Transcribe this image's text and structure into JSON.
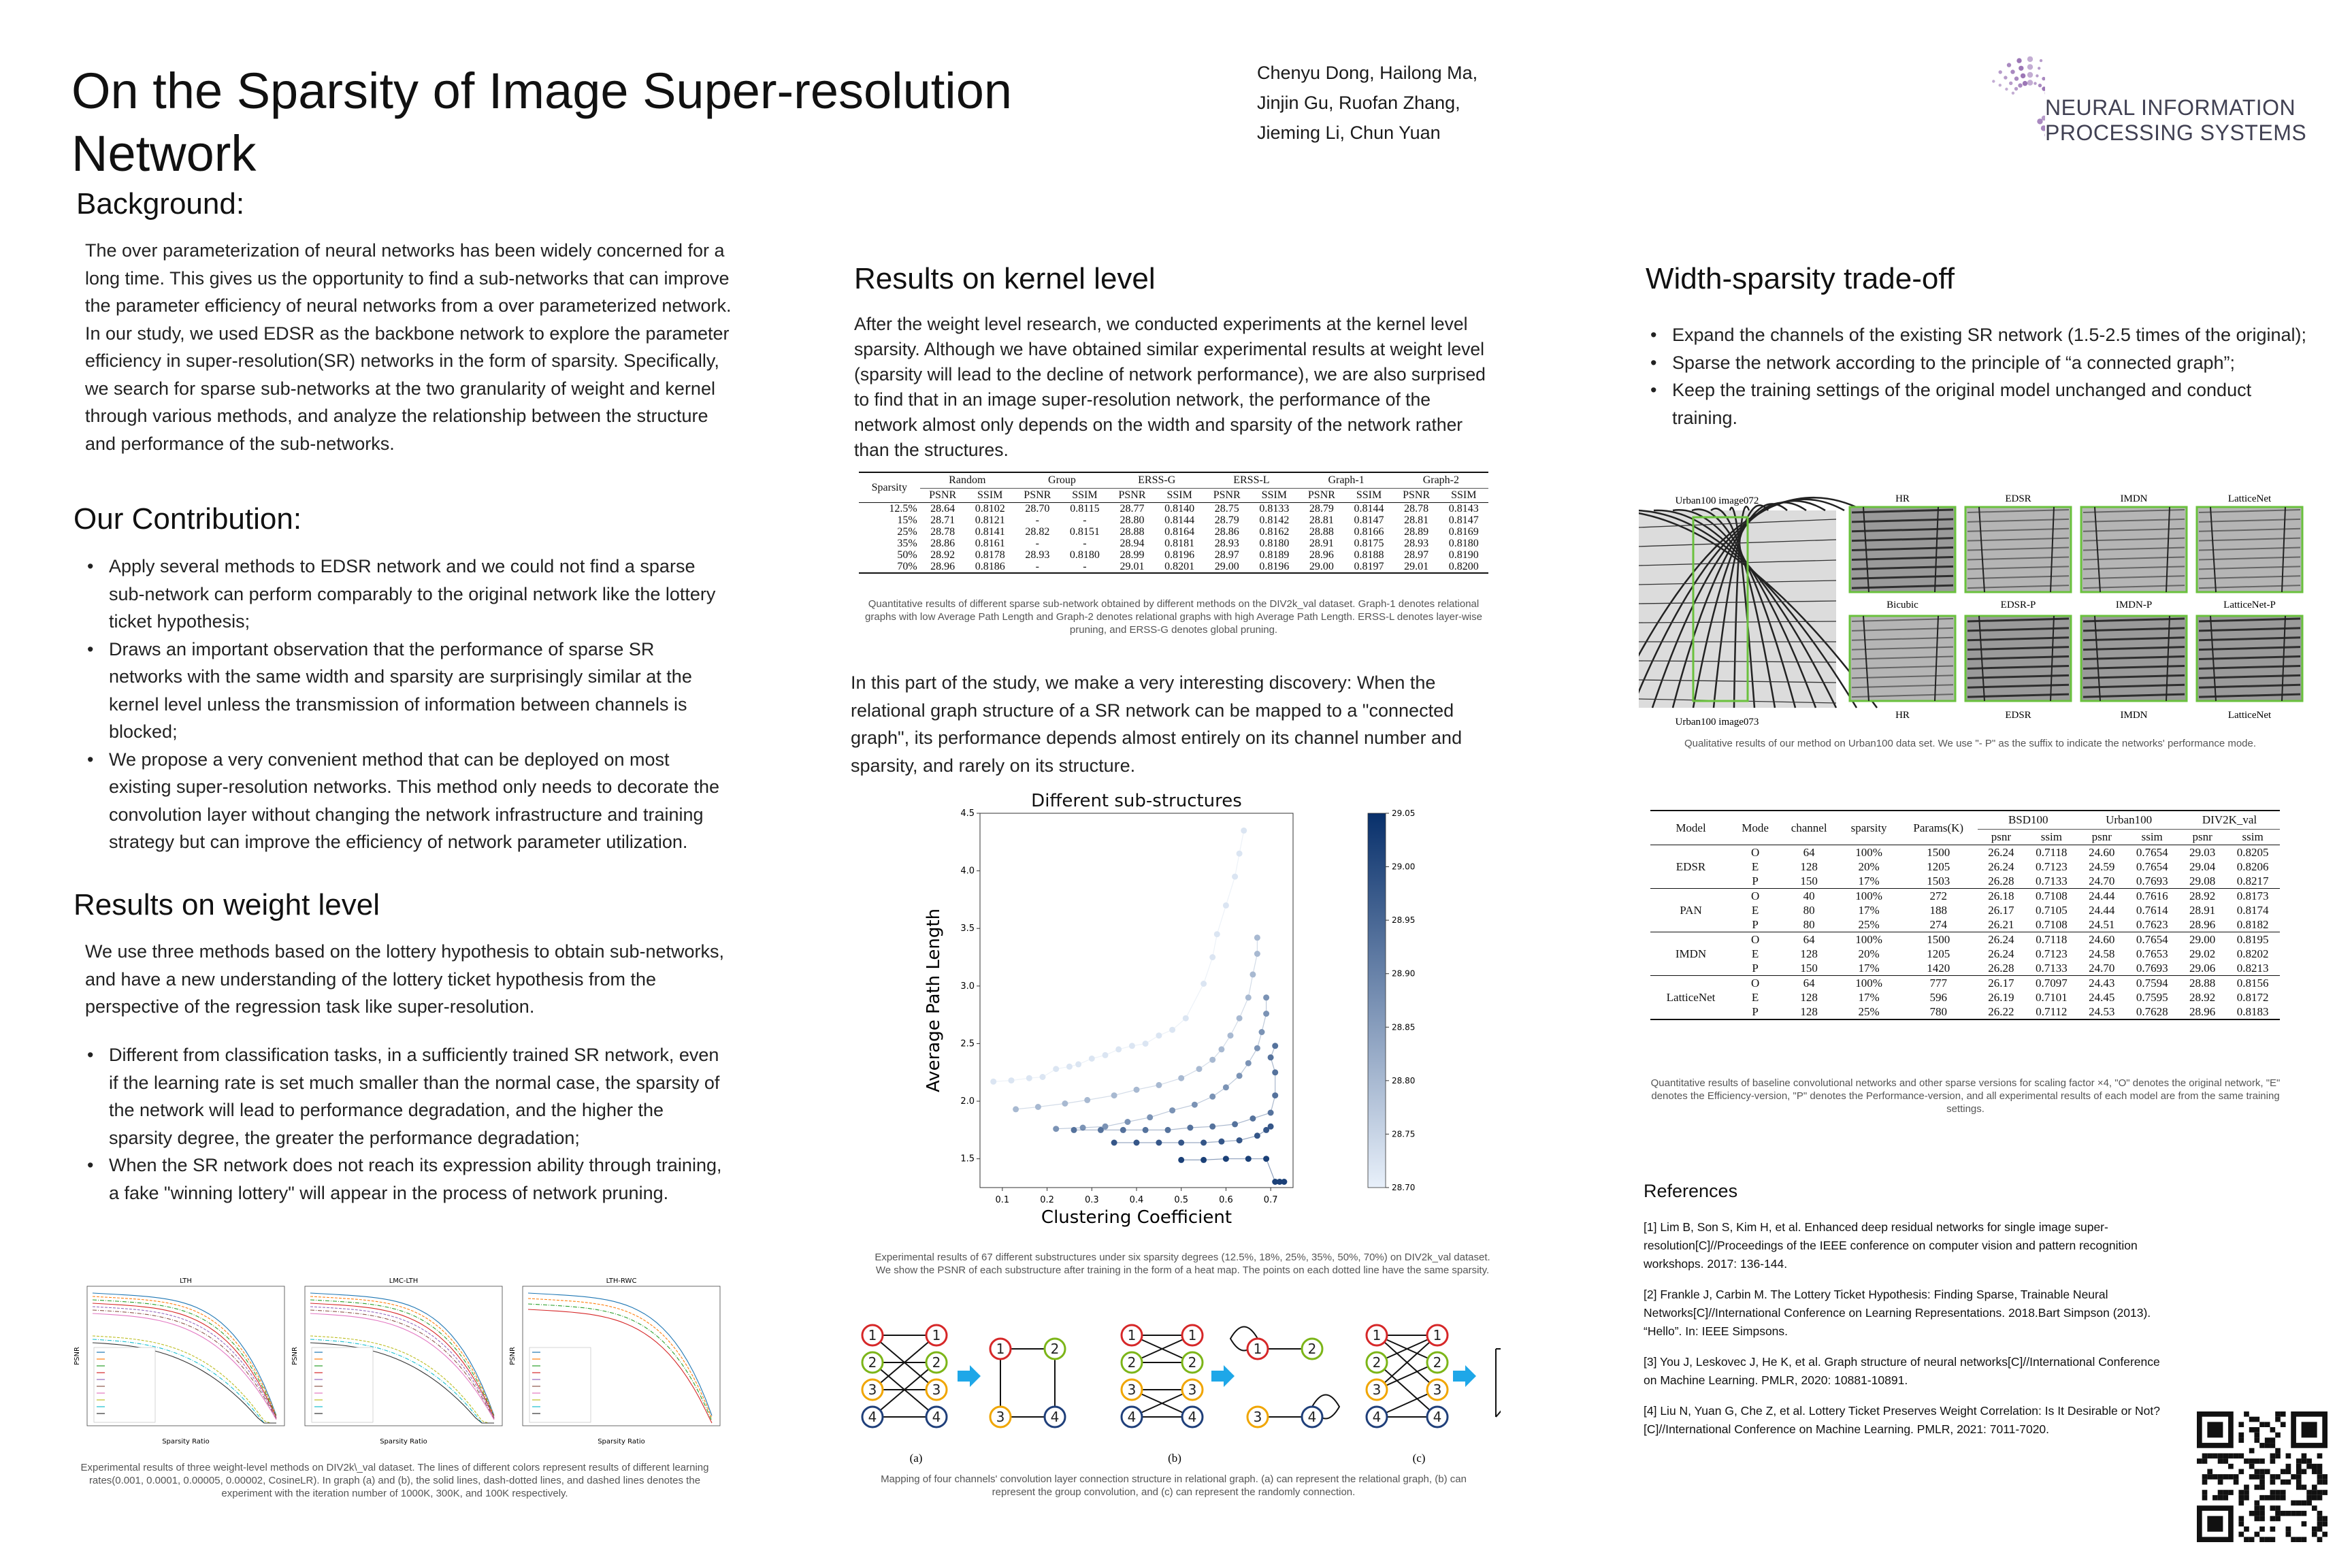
{
  "header": {
    "title": "On the Sparsity of Image Super-resolution Network",
    "authors": [
      "Chenyu Dong, Hailong Ma,",
      "Jinjin Gu, Ruofan Zhang,",
      "Jieming Li, Chun Yuan"
    ],
    "logo_line1": "NEURAL INFORMATION",
    "logo_line2": "PROCESSING SYSTEMS"
  },
  "background": {
    "heading": "Background:",
    "text": "The over parameterization of neural networks has been widely concerned for a long time. This gives us the opportunity to find a sub-networks that can improve the parameter efficiency of neural networks from a over parameterized network. In our study, we used EDSR as the backbone network to explore the parameter efficiency in super-resolution(SR) networks in the form of sparsity. Specifically, we search for sparse sub-networks at the two granularity of weight and kernel through various methods, and analyze the relationship between the structure and performance of the sub-networks."
  },
  "contribution": {
    "heading": "Our Contribution:",
    "items": [
      "Apply several methods to EDSR network and we could not find a sparse sub-network can perform comparably to the original network like the lottery ticket hypothesis;",
      "Draws an important observation that the performance of sparse SR networks with the same width and sparsity are surprisingly similar at the kernel level unless the transmission of information between channels is blocked;",
      "We propose a very convenient method that can be deployed on most existing super-resolution networks. This method only needs to decorate the convolution layer without changing the network infrastructure and training strategy but can improve the efficiency of network parameter utilization."
    ]
  },
  "weight": {
    "heading": "Results on weight level",
    "intro": "We use three methods based on the lottery hypothesis to obtain sub-networks, and have a new understanding of the lottery ticket hypothesis from the perspective of the regression task like super-resolution.",
    "items": [
      "Different from classification tasks, in a sufficiently trained SR network, even if the learning rate is set much smaller than the normal case, the sparsity of the network will lead to performance degradation, and the higher the sparsity degree, the greater the performance degradation;",
      "When the SR network does not reach its expression ability through training, a fake \"winning lottery\" will appear in the process of network pruning."
    ],
    "plots": [
      {
        "title": "LTH",
        "xlabel": "Sparsity Ratio",
        "ylabel": "PSNR"
      },
      {
        "title": "LMC-LTH",
        "xlabel": "Sparsity Ratio",
        "ylabel": "PSNR"
      },
      {
        "title": "LTH-RWC",
        "xlabel": "Sparsity Ratio",
        "ylabel": "PSNR"
      }
    ],
    "caption": "Experimental results of three weight-level methods on DIV2k\\_val dataset. The lines of different colors represent results of different learning rates(0.001, 0.0001, 0.00005, 0.00002, CosineLR). In graph (a) and (b), the solid lines, dash-dotted lines, and dashed lines denotes the experiment with the iteration number of 1000K, 300K, and 100K respectively."
  },
  "kernel": {
    "heading": "Results on kernel level",
    "intro": "After the weight level research, we conducted experiments at the kernel level sparsity.  Although we have obtained similar experimental results at weight level (sparsity will lead to the decline of network performance), we are also surprised to find that in an image super-resolution network, the performance of the network almost only depends on the width and sparsity of the network rather than the structures.",
    "table": {
      "groups": [
        "Random",
        "Group",
        "ERSS-G",
        "ERSS-L",
        "Graph-1",
        "Graph-2"
      ],
      "sub": [
        "PSNR",
        "SSIM"
      ],
      "first_col": "Sparsity",
      "rows": [
        [
          "12.5%",
          "28.64",
          "0.8102",
          "28.70",
          "0.8115",
          "28.77",
          "0.8140",
          "28.75",
          "0.8133",
          "28.79",
          "0.8144",
          "28.78",
          "0.8143"
        ],
        [
          "15%",
          "28.71",
          "0.8121",
          "-",
          "-",
          "28.80",
          "0.8144",
          "28.79",
          "0.8142",
          "28.81",
          "0.8147",
          "28.81",
          "0.8147"
        ],
        [
          "25%",
          "28.78",
          "0.8141",
          "28.82",
          "0.8151",
          "28.88",
          "0.8164",
          "28.86",
          "0.8162",
          "28.88",
          "0.8166",
          "28.89",
          "0.8169"
        ],
        [
          "35%",
          "28.86",
          "0.8161",
          "-",
          "-",
          "28.94",
          "0.8181",
          "28.93",
          "0.8180",
          "28.91",
          "0.8175",
          "28.93",
          "0.8180"
        ],
        [
          "50%",
          "28.92",
          "0.8178",
          "28.93",
          "0.8180",
          "28.99",
          "0.8196",
          "28.97",
          "0.8189",
          "28.96",
          "0.8188",
          "28.97",
          "0.8190"
        ],
        [
          "70%",
          "28.96",
          "0.8186",
          "-",
          "-",
          "29.01",
          "0.8201",
          "29.00",
          "0.8196",
          "29.00",
          "0.8197",
          "29.01",
          "0.8200"
        ]
      ]
    },
    "table_caption": "Quantitative results of different sparse sub-network obtained by different methods on the DIV2k_val dataset. Graph-1 denotes relational graphs with low Average Path Length and Graph-2 denotes relational graphs with high Average Path Length. ERSS-L denotes layer-wise pruning, and ERSS-G denotes global pruning.",
    "discovery": "In this part of the study, we make a very interesting discovery: When the relational graph structure of a SR network can be mapped to a \"connected graph\", its performance depends almost entirely on its channel number and sparsity, and rarely on its structure.",
    "scatter_caption": "Experimental results of 67 different substructures under six sparsity degrees (12.5%, 18%, 25%, 35%, 50%, 70%) on DIV2k_val dataset. We show the PSNR of each substructure after training in the form of a heat map. The points on each dotted line have the same sparsity.",
    "graph_labels": [
      "(a)",
      "(b)",
      "(c)"
    ],
    "graph_caption": "Mapping of four channels' convolution layer connection structure in relational graph. (a) can represent the relational graph, (b) can represent the group convolution, and (c) can represent the randomly connection."
  },
  "chart_data": {
    "type": "scatter",
    "title": "Different sub-structures",
    "xlabel": "Clustering Coefficient",
    "ylabel": "Average Path Length",
    "xlim": [
      0.05,
      0.75
    ],
    "ylim": [
      1.25,
      4.5
    ],
    "xticks": [
      "0.1",
      "0.2",
      "0.3",
      "0.4",
      "0.5",
      "0.6",
      "0.7"
    ],
    "yticks": [
      "1.5",
      "2.0",
      "2.5",
      "3.0",
      "3.5",
      "4.0",
      "4.5"
    ],
    "colorbar": {
      "min": 28.7,
      "max": 29.05,
      "ticks": [
        "28.70",
        "28.75",
        "28.80",
        "28.85",
        "28.90",
        "28.95",
        "29.00",
        "29.05"
      ]
    },
    "series": [
      {
        "psnr": 28.72,
        "points": [
          [
            0.08,
            2.17
          ],
          [
            0.12,
            2.18
          ],
          [
            0.16,
            2.2
          ],
          [
            0.19,
            2.21
          ],
          [
            0.22,
            2.28
          ],
          [
            0.25,
            2.3
          ],
          [
            0.27,
            2.32
          ],
          [
            0.3,
            2.37
          ],
          [
            0.33,
            2.4
          ],
          [
            0.36,
            2.45
          ],
          [
            0.39,
            2.48
          ],
          [
            0.42,
            2.5
          ],
          [
            0.45,
            2.57
          ],
          [
            0.48,
            2.62
          ],
          [
            0.51,
            2.72
          ],
          [
            0.55,
            3.02
          ],
          [
            0.57,
            3.25
          ],
          [
            0.58,
            3.45
          ],
          [
            0.6,
            3.7
          ],
          [
            0.62,
            3.95
          ],
          [
            0.63,
            4.15
          ],
          [
            0.64,
            4.35
          ]
        ]
      },
      {
        "psnr": 28.8,
        "points": [
          [
            0.13,
            1.93
          ],
          [
            0.18,
            1.95
          ],
          [
            0.24,
            1.98
          ],
          [
            0.29,
            2.01
          ],
          [
            0.35,
            2.05
          ],
          [
            0.4,
            2.1
          ],
          [
            0.45,
            2.14
          ],
          [
            0.5,
            2.2
          ],
          [
            0.54,
            2.28
          ],
          [
            0.57,
            2.36
          ],
          [
            0.59,
            2.45
          ],
          [
            0.61,
            2.57
          ],
          [
            0.63,
            2.72
          ],
          [
            0.65,
            2.9
          ],
          [
            0.66,
            3.1
          ],
          [
            0.67,
            3.28
          ],
          [
            0.67,
            3.42
          ]
        ]
      },
      {
        "psnr": 28.87,
        "points": [
          [
            0.22,
            1.76
          ],
          [
            0.28,
            1.77
          ],
          [
            0.33,
            1.78
          ],
          [
            0.38,
            1.82
          ],
          [
            0.43,
            1.86
          ],
          [
            0.48,
            1.92
          ],
          [
            0.53,
            1.97
          ],
          [
            0.57,
            2.04
          ],
          [
            0.6,
            2.12
          ],
          [
            0.63,
            2.22
          ],
          [
            0.65,
            2.33
          ],
          [
            0.67,
            2.46
          ],
          [
            0.68,
            2.6
          ],
          [
            0.69,
            2.76
          ],
          [
            0.69,
            2.9
          ]
        ]
      },
      {
        "psnr": 28.93,
        "points": [
          [
            0.26,
            1.75
          ],
          [
            0.32,
            1.75
          ],
          [
            0.37,
            1.75
          ],
          [
            0.42,
            1.75
          ],
          [
            0.47,
            1.75
          ],
          [
            0.52,
            1.77
          ],
          [
            0.57,
            1.78
          ],
          [
            0.62,
            1.8
          ],
          [
            0.66,
            1.85
          ],
          [
            0.7,
            1.9
          ],
          [
            0.71,
            2.05
          ],
          [
            0.71,
            2.25
          ],
          [
            0.7,
            2.38
          ],
          [
            0.71,
            2.48
          ]
        ]
      },
      {
        "psnr": 28.98,
        "points": [
          [
            0.35,
            1.64
          ],
          [
            0.4,
            1.64
          ],
          [
            0.45,
            1.64
          ],
          [
            0.5,
            1.64
          ],
          [
            0.55,
            1.64
          ],
          [
            0.59,
            1.65
          ],
          [
            0.63,
            1.66
          ],
          [
            0.67,
            1.7
          ],
          [
            0.69,
            1.75
          ],
          [
            0.7,
            1.78
          ]
        ]
      },
      {
        "psnr": 29.02,
        "points": [
          [
            0.5,
            1.49
          ],
          [
            0.55,
            1.49
          ],
          [
            0.6,
            1.5
          ],
          [
            0.65,
            1.5
          ],
          [
            0.69,
            1.5
          ],
          [
            0.71,
            1.3
          ],
          [
            0.72,
            1.3
          ],
          [
            0.73,
            1.3
          ]
        ]
      }
    ]
  },
  "width": {
    "heading": "Width-sparsity trade-off",
    "items": [
      "Expand the channels of the existing SR network (1.5-2.5 times of the original);",
      "Sparse the network according to the principle of “a connected graph”;",
      "Keep the training settings of the original model unchanged and conduct training."
    ],
    "img_top": "Urban100 image072",
    "img_bottom": "Urban100 image073",
    "top_labels": [
      "HR",
      "EDSR",
      "IMDN",
      "LatticeNet"
    ],
    "mid_labels": [
      "Bicubic",
      "EDSR-P",
      "IMDN-P",
      "LatticeNet-P"
    ],
    "bot_labels": [
      "HR",
      "EDSR",
      "IMDN",
      "LatticeNet"
    ],
    "img_caption": "Qualitative results of our method on Urban100 data set. We use \"- P\" as the suffix to indicate the networks' performance mode.",
    "table": {
      "head1": [
        "Model",
        "Mode",
        "channel",
        "sparsity",
        "Params(K)",
        "BSD100",
        "Urban100",
        "DIV2K_val"
      ],
      "sub": [
        "psnr",
        "ssim"
      ],
      "models": [
        {
          "name": "EDSR",
          "rows": [
            [
              "O",
              "64",
              "100%",
              "1500",
              "26.24",
              "0.7118",
              "24.60",
              "0.7654",
              "29.03",
              "0.8205"
            ],
            [
              "E",
              "128",
              "20%",
              "1205",
              "26.24",
              "0.7123",
              "24.59",
              "0.7654",
              "29.04",
              "0.8206"
            ],
            [
              "P",
              "150",
              "17%",
              "1503",
              "26.28",
              "0.7133",
              "24.70",
              "0.7693",
              "29.08",
              "0.8217"
            ]
          ]
        },
        {
          "name": "PAN",
          "rows": [
            [
              "O",
              "40",
              "100%",
              "272",
              "26.18",
              "0.7108",
              "24.44",
              "0.7616",
              "28.92",
              "0.8173"
            ],
            [
              "E",
              "80",
              "17%",
              "188",
              "26.17",
              "0.7105",
              "24.44",
              "0.7614",
              "28.91",
              "0.8174"
            ],
            [
              "P",
              "80",
              "25%",
              "274",
              "26.21",
              "0.7108",
              "24.51",
              "0.7623",
              "28.96",
              "0.8182"
            ]
          ]
        },
        {
          "name": "IMDN",
          "rows": [
            [
              "O",
              "64",
              "100%",
              "1500",
              "26.24",
              "0.7118",
              "24.60",
              "0.7654",
              "29.00",
              "0.8195"
            ],
            [
              "E",
              "128",
              "20%",
              "1205",
              "26.24",
              "0.7123",
              "24.58",
              "0.7653",
              "29.02",
              "0.8202"
            ],
            [
              "P",
              "150",
              "17%",
              "1420",
              "26.28",
              "0.7133",
              "24.70",
              "0.7693",
              "29.06",
              "0.8213"
            ]
          ]
        },
        {
          "name": "LatticeNet",
          "rows": [
            [
              "O",
              "64",
              "100%",
              "777",
              "26.17",
              "0.7097",
              "24.43",
              "0.7594",
              "28.88",
              "0.8156"
            ],
            [
              "E",
              "128",
              "17%",
              "596",
              "26.19",
              "0.7101",
              "24.45",
              "0.7595",
              "28.92",
              "0.8172"
            ],
            [
              "P",
              "128",
              "25%",
              "780",
              "26.22",
              "0.7112",
              "24.53",
              "0.7628",
              "28.96",
              "0.8183"
            ]
          ]
        }
      ]
    },
    "table_caption": "Quantitative results of baseline convolutional networks and other sparse versions for scaling factor ×4, \"O\" denotes the original network, \"E\" denotes the Efficiency-version, \"P\" denotes the Performance-version, and all experimental results of each model are from the same training settings."
  },
  "references": {
    "heading": "References",
    "items": [
      "[1] Lim B, Son S, Kim H, et al. Enhanced deep residual networks for single image super-resolution[C]//Proceedings of the IEEE conference on computer vision and pattern recognition workshops. 2017: 136-144.",
      "[2] Frankle J, Carbin M. The Lottery Ticket Hypothesis: Finding Sparse, Trainable Neural Networks[C]//International Conference on Learning Representations. 2018.Bart Simpson (2013). “Hello”. In: IEEE Simpsons.",
      "[3] You J, Leskovec J, He K, et al. Graph structure of neural networks[C]//International Conference on Machine Learning. PMLR, 2020: 10881-10891.",
      "[4] Liu N, Yuan G, Che Z, et al. Lottery Ticket Preserves Weight Correlation: Is It Desirable or Not?[C]//International Conference on Machine Learning. PMLR, 2021: 7011-7020."
    ]
  },
  "colors": {
    "accent_blue": "#1f4e8c",
    "logo_purple": "#7b4a9e",
    "arrow": "#1ea7e8",
    "graph_red": "#d62728",
    "graph_green": "#7cb518",
    "graph_orange": "#f0a500",
    "graph_navy": "#1f3f7a"
  }
}
